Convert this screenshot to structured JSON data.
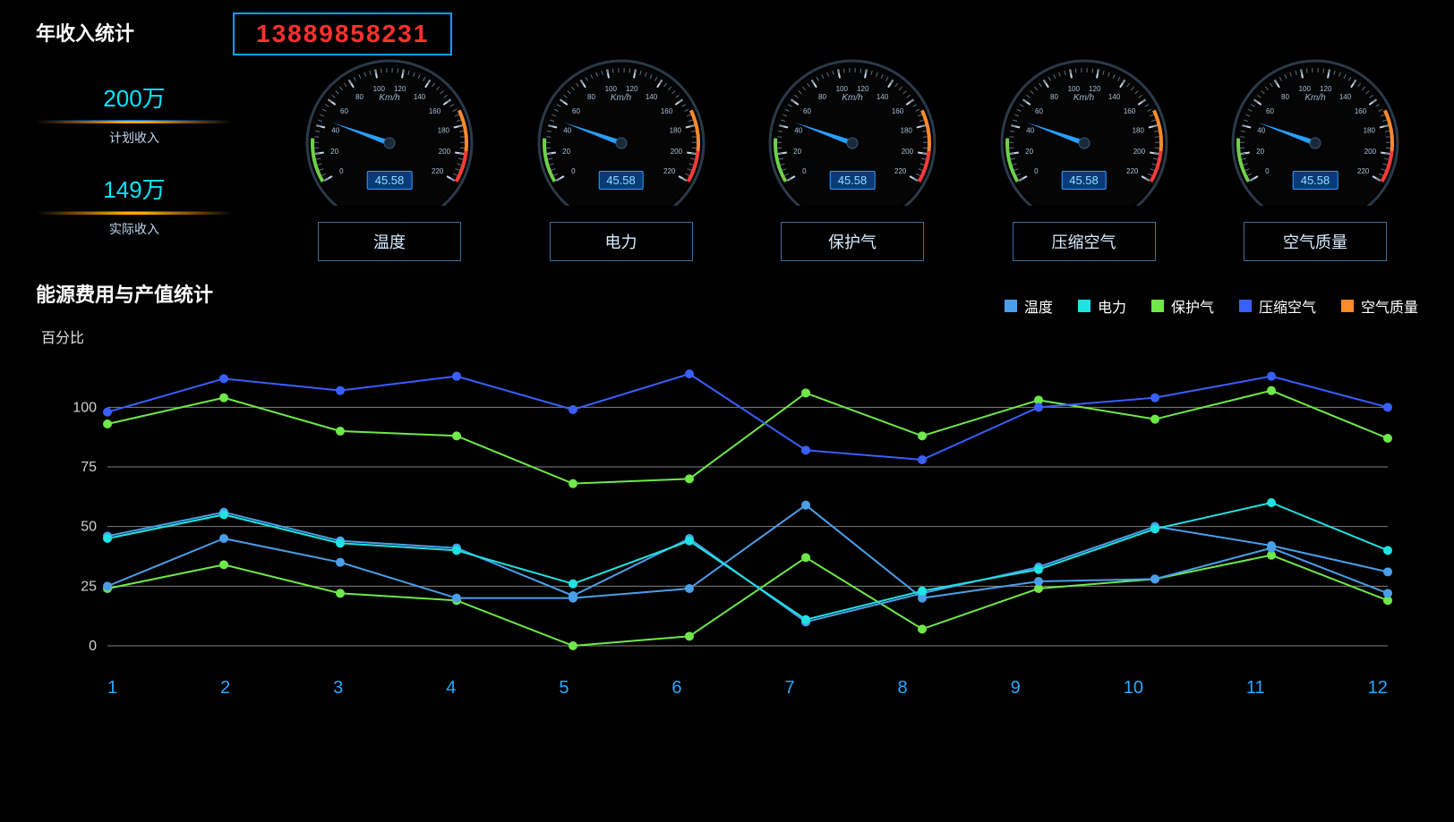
{
  "header": {
    "title": "年收入统计",
    "phone": "13889858231",
    "phone_border_color": "#00a2ff",
    "phone_text_color": "#ff3030"
  },
  "stats": [
    {
      "value": "200万",
      "label": "计划收入"
    },
    {
      "value": "149万",
      "label": "实际收入"
    }
  ],
  "stat_value_color": "#00e7ff",
  "gauge": {
    "unit": "Km/h",
    "min": 0,
    "max": 220,
    "ticks": [
      0,
      20,
      40,
      60,
      80,
      100,
      120,
      140,
      160,
      180,
      200,
      220
    ],
    "value": 45.58,
    "value_text": "45.58",
    "start_angle_deg": 210,
    "end_angle_deg": -30,
    "needle_color": "#2a9fff",
    "tick_color": "#c8d8e8",
    "arc_green": "#6fd04a",
    "arc_orange": "#ff8a2a",
    "arc_red": "#ff3a3a",
    "face_color": "#050505"
  },
  "gauges_labels": [
    "温度",
    "电力",
    "保护气",
    "压缩空气",
    "空气质量"
  ],
  "chart": {
    "title": "能源费用与产值统计",
    "y_label": "百分比",
    "y_ticks": [
      0,
      25,
      50,
      75,
      100
    ],
    "ylim": [
      0,
      120
    ],
    "x_labels": [
      "1",
      "2",
      "3",
      "4",
      "5",
      "6",
      "7",
      "8",
      "9",
      "10",
      "11",
      "12"
    ],
    "x_color": "#2aa8ff",
    "grid_color": "#808080",
    "bg": "#000000",
    "marker_size": 5,
    "line_width": 2,
    "series": [
      {
        "name": "温度",
        "color": "#4a9fe8",
        "values": [
          46,
          56,
          44,
          41,
          21,
          45,
          10,
          22,
          33,
          50,
          42,
          31
        ]
      },
      {
        "name": "电力",
        "color": "#1fe3e3",
        "values": [
          45,
          55,
          43,
          40,
          26,
          44,
          11,
          23,
          32,
          49,
          60,
          40
        ]
      },
      {
        "name": "保护气",
        "color": "#6fe84a",
        "values": [
          93,
          104,
          90,
          88,
          68,
          70,
          106,
          88,
          103,
          95,
          107,
          87
        ]
      },
      {
        "name": "压缩空气",
        "color": "#3a5fff",
        "values": [
          98,
          112,
          107,
          113,
          99,
          114,
          82,
          78,
          100,
          104,
          113,
          100
        ]
      },
      {
        "name": "空气质量",
        "color": "#ff8a2a",
        "values": []
      }
    ],
    "extra_series": [
      {
        "color": "#6fe84a",
        "values": [
          24,
          34,
          22,
          19,
          0,
          4,
          37,
          7,
          24,
          28,
          38,
          19
        ]
      },
      {
        "color": "#4a9fe8",
        "values": [
          25,
          45,
          35,
          20,
          20,
          24,
          59,
          20,
          27,
          28,
          41,
          22
        ]
      }
    ]
  }
}
